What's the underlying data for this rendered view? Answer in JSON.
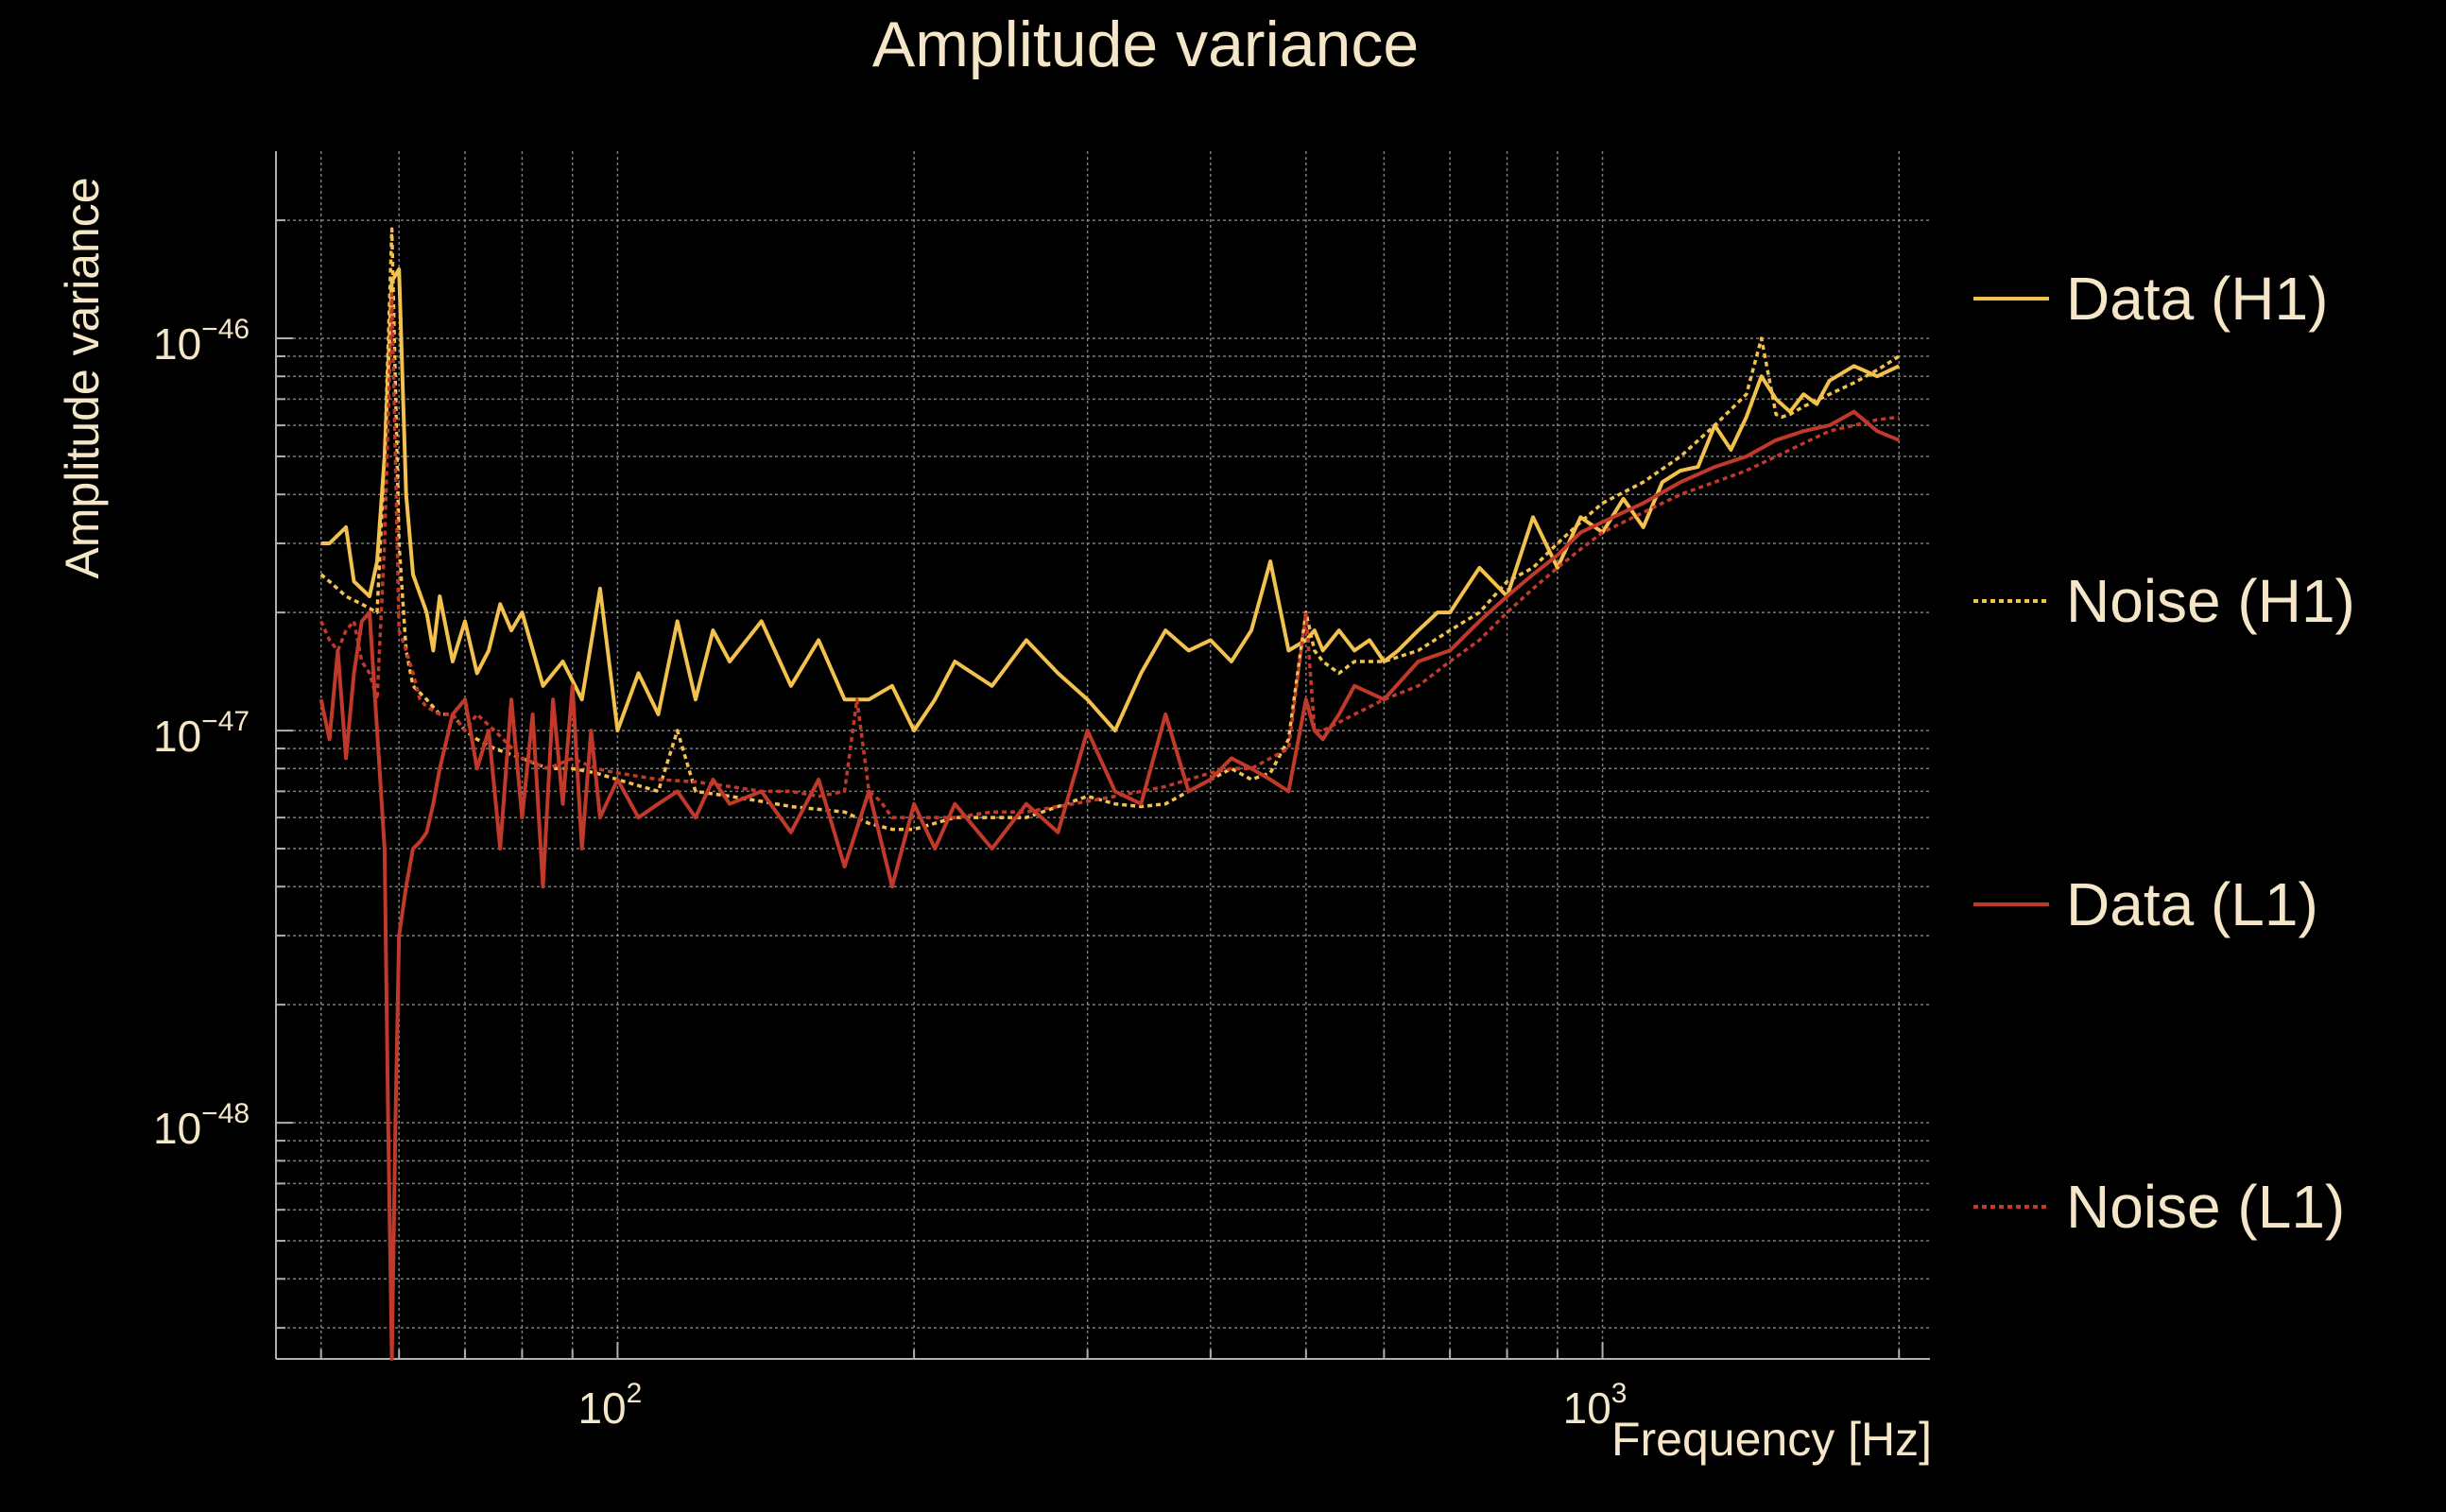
{
  "chart_data": {
    "type": "line",
    "title": "Amplitude variance",
    "xlabel": "Frequency [Hz]",
    "ylabel": "Amplitude variance",
    "xscale": "log",
    "yscale": "log",
    "xlim": [
      45,
      2150
    ],
    "ylim": [
      2.5e-49,
      3e-46
    ],
    "xticks": [
      {
        "value": 100,
        "base": "10",
        "exp": "2"
      },
      {
        "value": 1000,
        "base": "10",
        "exp": "3"
      }
    ],
    "yticks": [
      {
        "value": 1e-46,
        "base": "10",
        "exp": "−46"
      },
      {
        "value": 1e-47,
        "base": "10",
        "exp": "−47"
      },
      {
        "value": 1e-48,
        "base": "10",
        "exp": "−48"
      }
    ],
    "grid": true,
    "legend_position": "right",
    "series": [
      {
        "name": "Data (H1)",
        "color": "#f2c14e",
        "style": "solid",
        "x": [
          50,
          51,
          53,
          54,
          56,
          57,
          58,
          59,
          60,
          61,
          62,
          64,
          65,
          66,
          68,
          70,
          72,
          74,
          76,
          78,
          80,
          84,
          88,
          92,
          96,
          100,
          105,
          110,
          115,
          120,
          125,
          130,
          140,
          150,
          160,
          170,
          180,
          190,
          200,
          210,
          220,
          240,
          260,
          280,
          300,
          320,
          340,
          360,
          380,
          400,
          420,
          440,
          460,
          480,
          500,
          510,
          520,
          540,
          560,
          580,
          600,
          620,
          650,
          680,
          700,
          750,
          800,
          850,
          900,
          950,
          1000,
          1050,
          1100,
          1150,
          1200,
          1250,
          1300,
          1350,
          1400,
          1450,
          1500,
          1550,
          1600,
          1650,
          1700,
          1800,
          1900,
          2000
        ],
        "y": [
          3e-47,
          3e-47,
          3.3e-47,
          2.4e-47,
          2.2e-47,
          2.7e-47,
          5e-47,
          1.4e-46,
          1.5e-46,
          4e-47,
          2.5e-47,
          2e-47,
          1.6e-47,
          2.2e-47,
          1.5e-47,
          1.9e-47,
          1.4e-47,
          1.6e-47,
          2.1e-47,
          1.8e-47,
          2e-47,
          1.3e-47,
          1.5e-47,
          1.2e-47,
          2.3e-47,
          1e-47,
          1.4e-47,
          1.1e-47,
          1.9e-47,
          1.2e-47,
          1.8e-47,
          1.5e-47,
          1.9e-47,
          1.3e-47,
          1.7e-47,
          1.2e-47,
          1.2e-47,
          1.3e-47,
          1e-47,
          1.2e-47,
          1.5e-47,
          1.3e-47,
          1.7e-47,
          1.4e-47,
          1.2e-47,
          1e-47,
          1.4e-47,
          1.8e-47,
          1.6e-47,
          1.7e-47,
          1.5e-47,
          1.8e-47,
          2.7e-47,
          1.6e-47,
          1.7e-47,
          1.8e-47,
          1.6e-47,
          1.8e-47,
          1.6e-47,
          1.7e-47,
          1.5e-47,
          1.6e-47,
          1.8e-47,
          2e-47,
          2e-47,
          2.6e-47,
          2.2e-47,
          3.5e-47,
          2.6e-47,
          3.5e-47,
          3.2e-47,
          3.9e-47,
          3.3e-47,
          4.3e-47,
          4.6e-47,
          4.7e-47,
          6e-47,
          5.2e-47,
          6.3e-47,
          8e-47,
          7e-47,
          6.5e-47,
          7.2e-47,
          6.8e-47,
          7.8e-47,
          8.5e-47,
          8e-47,
          8.5e-47
        ]
      },
      {
        "name": "Noise (H1)",
        "color": "#f2c14e",
        "style": "dotted",
        "x": [
          50,
          51,
          53,
          55,
          57,
          58,
          59,
          60,
          61,
          62,
          64,
          66,
          68,
          70,
          72,
          75,
          80,
          85,
          90,
          95,
          100,
          110,
          115,
          120,
          130,
          140,
          150,
          160,
          170,
          180,
          190,
          200,
          220,
          240,
          260,
          280,
          300,
          320,
          340,
          360,
          380,
          400,
          420,
          440,
          460,
          480,
          500,
          510,
          520,
          540,
          560,
          600,
          650,
          700,
          750,
          800,
          850,
          900,
          950,
          1000,
          1100,
          1200,
          1300,
          1400,
          1450,
          1500,
          1520,
          1550,
          1600,
          1700,
          1800,
          1900,
          2000
        ],
        "y": [
          2.5e-47,
          2.4e-47,
          2.2e-47,
          2.1e-47,
          2e-47,
          5e-47,
          1.9e-46,
          3e-47,
          1.6e-47,
          1.3e-47,
          1.2e-47,
          1.1e-47,
          1.1e-47,
          1e-47,
          9.5e-48,
          9e-48,
          8.5e-48,
          8e-48,
          8e-48,
          7.8e-48,
          7.5e-48,
          7e-48,
          1e-47,
          7e-48,
          6.8e-48,
          6.6e-48,
          6.4e-48,
          6.3e-48,
          6.2e-48,
          5.8e-48,
          5.6e-48,
          5.6e-48,
          6e-48,
          6e-48,
          6e-48,
          6.4e-48,
          6.8e-48,
          6.5e-48,
          6.4e-48,
          6.5e-48,
          7e-48,
          7.5e-48,
          8e-48,
          7.5e-48,
          7.8e-48,
          9.5e-48,
          2e-47,
          1.6e-47,
          1.5e-47,
          1.4e-47,
          1.5e-47,
          1.5e-47,
          1.6e-47,
          1.8e-47,
          2e-47,
          2.4e-47,
          2.6e-47,
          3e-47,
          3.4e-47,
          3.8e-47,
          4.3e-47,
          5e-47,
          6e-47,
          7.2e-47,
          1e-46,
          6.4e-47,
          6.3e-47,
          6.4e-47,
          6.7e-47,
          7.2e-47,
          7.7e-47,
          8.3e-47,
          9e-47
        ]
      },
      {
        "name": "Data (L1)",
        "color": "#c0392b",
        "style": "solid",
        "x": [
          50,
          51,
          52,
          53,
          54,
          55,
          56,
          57,
          58,
          58.5,
          59,
          59.5,
          60,
          61,
          62,
          63,
          64,
          65,
          66,
          68,
          70,
          72,
          74,
          76,
          78,
          80,
          82,
          84,
          86,
          88,
          90,
          92,
          94,
          96,
          100,
          105,
          110,
          115,
          120,
          125,
          130,
          140,
          150,
          160,
          170,
          180,
          190,
          200,
          210,
          220,
          240,
          260,
          280,
          300,
          320,
          340,
          360,
          380,
          400,
          420,
          440,
          460,
          480,
          500,
          510,
          520,
          540,
          560,
          600,
          650,
          700,
          750,
          800,
          850,
          900,
          950,
          1000,
          1050,
          1100,
          1200,
          1300,
          1400,
          1500,
          1600,
          1700,
          1800,
          1900,
          2000
        ],
        "y": [
          1.2e-47,
          9.5e-48,
          1.6e-47,
          8.5e-48,
          1.4e-47,
          1.9e-47,
          2e-47,
          1e-47,
          5e-48,
          1e-48,
          2.5e-49,
          1e-48,
          3e-48,
          4e-48,
          5e-48,
          5.2e-48,
          5.5e-48,
          6.5e-48,
          8e-48,
          1.1e-47,
          1.2e-47,
          8e-48,
          1e-47,
          5e-48,
          1.2e-47,
          6e-48,
          1.1e-47,
          4e-48,
          1.2e-47,
          6.5e-48,
          1.3e-47,
          5e-48,
          1e-47,
          6e-48,
          7.5e-48,
          6e-48,
          6.5e-48,
          7e-48,
          6e-48,
          7.5e-48,
          6.5e-48,
          7e-48,
          5.5e-48,
          7.5e-48,
          4.5e-48,
          7e-48,
          4e-48,
          6.5e-48,
          5e-48,
          6.5e-48,
          5e-48,
          6.5e-48,
          5.5e-48,
          1e-47,
          7e-48,
          6.5e-48,
          1.1e-47,
          7e-48,
          7.5e-48,
          8.5e-48,
          8e-48,
          7.5e-48,
          7e-48,
          1.2e-47,
          1e-47,
          9.5e-48,
          1.1e-47,
          1.3e-47,
          1.2e-47,
          1.5e-47,
          1.6e-47,
          1.9e-47,
          2.2e-47,
          2.5e-47,
          2.8e-47,
          3.2e-47,
          3.4e-47,
          3.6e-47,
          3.8e-47,
          4.3e-47,
          4.7e-47,
          5e-47,
          5.5e-47,
          5.8e-47,
          6e-47,
          6.5e-47,
          5.8e-47,
          5.5e-47
        ]
      },
      {
        "name": "Noise (L1)",
        "color": "#c0392b",
        "style": "dotted",
        "x": [
          50,
          51,
          52,
          53,
          54,
          55,
          56,
          57,
          58,
          59,
          60,
          61,
          62,
          63,
          64,
          66,
          68,
          70,
          72,
          75,
          80,
          85,
          90,
          95,
          100,
          110,
          120,
          130,
          140,
          150,
          160,
          170,
          175,
          180,
          185,
          190,
          200,
          220,
          240,
          260,
          280,
          300,
          320,
          340,
          360,
          380,
          400,
          420,
          440,
          460,
          480,
          500,
          510,
          520,
          540,
          560,
          600,
          650,
          700,
          750,
          800,
          850,
          900,
          950,
          1000,
          1100,
          1200,
          1300,
          1400,
          1500,
          1600,
          1700,
          1800,
          1900,
          2000
        ],
        "y": [
          1.9e-47,
          1.7e-47,
          1.6e-47,
          1.8e-47,
          1.9e-47,
          1.5e-47,
          1.4e-47,
          1.2e-47,
          3e-47,
          1.3e-46,
          1.8e-47,
          1.6e-47,
          1.4e-47,
          1.2e-47,
          1.15e-47,
          1.1e-47,
          1.1e-47,
          1e-47,
          1.1e-47,
          1e-47,
          8.5e-48,
          8e-48,
          8.5e-48,
          8e-48,
          7.8e-48,
          7.5e-48,
          7.4e-48,
          7.2e-48,
          7e-48,
          7e-48,
          6.8e-48,
          7e-48,
          1.2e-47,
          7e-48,
          6.6e-48,
          6e-48,
          6e-48,
          6e-48,
          6.2e-48,
          6.2e-48,
          6.4e-48,
          6.6e-48,
          6.8e-48,
          7e-48,
          7.2e-48,
          7.5e-48,
          7.8e-48,
          8e-48,
          8e-48,
          8.5e-48,
          9e-48,
          2e-47,
          1e-47,
          1e-47,
          1.05e-47,
          1.1e-47,
          1.2e-47,
          1.3e-47,
          1.5e-47,
          1.7e-47,
          2e-47,
          2.3e-47,
          2.6e-47,
          2.9e-47,
          3.2e-47,
          3.6e-47,
          4e-47,
          4.3e-47,
          4.6e-47,
          5e-47,
          5.4e-47,
          5.8e-47,
          6e-47,
          6.2e-47,
          6.3e-47
        ]
      }
    ]
  }
}
